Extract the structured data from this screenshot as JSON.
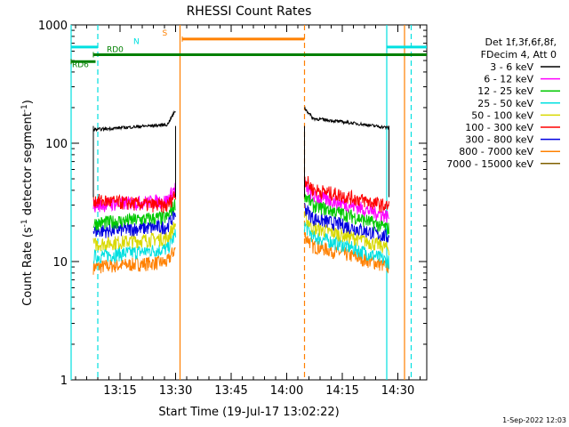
{
  "chart_data": {
    "type": "line",
    "title": "RHESSI Count Rates",
    "xlabel": "Start Time (19-Jul-17 13:02:22)",
    "ylabel_parts": [
      "Count Rate (s",
      "-1",
      " detector segment",
      "-1",
      ")"
    ],
    "y_scale": "log",
    "ylim": [
      1,
      1000
    ],
    "xlim_minutes": [
      13.03,
      14.63
    ],
    "x_ticks": [
      {
        "label": "13:15",
        "value": 13.25
      },
      {
        "label": "13:30",
        "value": 13.5
      },
      {
        "label": "13:45",
        "value": 13.75
      },
      {
        "label": "14:00",
        "value": 14.0
      },
      {
        "label": "14:15",
        "value": 14.25
      },
      {
        "label": "14:30",
        "value": 14.5
      }
    ],
    "y_ticks": [
      {
        "label": "1",
        "value": 1
      },
      {
        "label": "10",
        "value": 10
      },
      {
        "label": "100",
        "value": 100
      },
      {
        "label": "1000",
        "value": 1000
      }
    ],
    "legend_header": [
      "Det 1f,3f,6f,8f,",
      "FDecim 4, Att 0"
    ],
    "series": [
      {
        "name": "3 - 6 keV",
        "color": "#000000",
        "levels": [
          130,
          145,
          165,
          135
        ]
      },
      {
        "name": "6 - 12 keV",
        "color": "#ff00ff",
        "levels": [
          30,
          33,
          37,
          24
        ]
      },
      {
        "name": "12 - 25 keV",
        "color": "#00c800",
        "levels": [
          21,
          24,
          31,
          19
        ]
      },
      {
        "name": "25 - 50 keV",
        "color": "#00e0e0",
        "levels": [
          11,
          13,
          17,
          10
        ]
      },
      {
        "name": "50 - 100 keV",
        "color": "#d8d800",
        "levels": [
          14,
          16,
          20,
          13
        ]
      },
      {
        "name": "100 - 300 keV",
        "color": "#ff0000",
        "levels": [
          33,
          29,
          42,
          29
        ]
      },
      {
        "name": "300 - 800 keV",
        "color": "#0000e0",
        "levels": [
          18,
          20,
          24,
          16
        ]
      },
      {
        "name": "800 - 7000 keV",
        "color": "#ff8000",
        "levels": [
          9,
          10,
          14,
          9
        ]
      },
      {
        "name": "7000 - 15000 keV",
        "color": "#806000",
        "levels": []
      }
    ],
    "segments": [
      [
        13.13,
        13.5
      ],
      [
        14.08,
        14.46
      ]
    ],
    "flag_bars": [
      {
        "label": "RD6",
        "color": "#008000",
        "x": [
          13.03,
          13.14
        ],
        "y": 490
      },
      {
        "label": "RD0",
        "color": "#008000",
        "x": [
          13.13,
          14.63
        ],
        "y": 560
      },
      {
        "label": "N",
        "color": "#00e0e0",
        "x": [
          13.03,
          13.15
        ],
        "y": 650
      },
      {
        "label": "N",
        "color": "#00e0e0",
        "x": [
          14.45,
          14.63
        ],
        "y": 650
      },
      {
        "label": "S",
        "color": "#ff8000",
        "x": [
          13.53,
          14.08
        ],
        "y": 760
      }
    ],
    "markers": [
      {
        "x": 13.03,
        "color": "#00e0e0",
        "dash": false
      },
      {
        "x": 13.15,
        "color": "#00e0e0",
        "dash": true
      },
      {
        "x": 13.52,
        "color": "#ff8000",
        "dash": false
      },
      {
        "x": 14.08,
        "color": "#ff8000",
        "dash": true
      },
      {
        "x": 14.45,
        "color": "#00e0e0",
        "dash": false
      },
      {
        "x": 14.56,
        "color": "#00e0e0",
        "dash": true
      },
      {
        "x": 14.53,
        "color": "#ff8000",
        "dash": false
      }
    ],
    "flag_labels": [
      {
        "text": "RD6",
        "color": "#008000"
      },
      {
        "text": "RD0",
        "color": "#008000"
      },
      {
        "text": "N",
        "color": "#00e0e0"
      },
      {
        "text": "S",
        "color": "#ff8000"
      }
    ],
    "footer_date": "1-Sep-2022 12:03"
  }
}
